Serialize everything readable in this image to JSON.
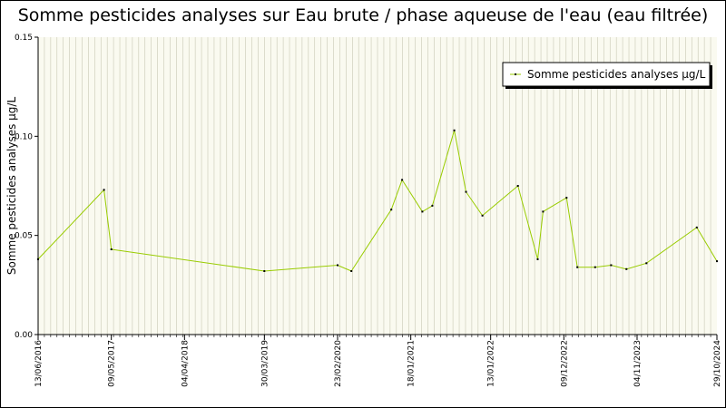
{
  "chart_data": {
    "type": "line",
    "title": "Somme pesticides analyses sur Eau brute / phase aqueuse de l'eau (eau filtrée)",
    "ylabel": "Somme pesticides analyses µg/L",
    "xlabel": "",
    "ylim": [
      0,
      0.15
    ],
    "y_ticks": [
      "0.00",
      "0.05",
      "0.10",
      "0.15"
    ],
    "x_range": [
      "2016-06-13",
      "2024-10-29"
    ],
    "x_tick_labels": [
      {
        "date": "2016-06-13",
        "label": "13/06/2016"
      },
      {
        "date": "2017-05-09",
        "label": "09/05/2017"
      },
      {
        "date": "2018-04-04",
        "label": "04/04/2018"
      },
      {
        "date": "2019-03-30",
        "label": "30/03/2019"
      },
      {
        "date": "2020-02-23",
        "label": "23/02/2020"
      },
      {
        "date": "2021-01-18",
        "label": "18/01/2021"
      },
      {
        "date": "2022-01-13",
        "label": "13/01/2022"
      },
      {
        "date": "2022-12-09",
        "label": "09/12/2022"
      },
      {
        "date": "2023-11-04",
        "label": "04/11/2023"
      },
      {
        "date": "2024-10-29",
        "label": "29/10/2024"
      }
    ],
    "grid": "vertical",
    "legend_position": "top-right",
    "series": [
      {
        "name": "Somme pesticides analyses µg/L",
        "color": "#99cc00",
        "x": [
          "2016-06-13",
          "2017-04-06",
          "2017-05-09",
          "2019-03-30",
          "2020-02-23",
          "2020-04-25",
          "2020-10-22",
          "2020-12-10",
          "2021-03-11",
          "2021-04-25",
          "2021-08-02",
          "2021-09-24",
          "2021-12-07",
          "2022-05-16",
          "2022-08-13",
          "2022-09-06",
          "2022-12-21",
          "2023-02-08",
          "2023-04-29",
          "2023-07-10",
          "2023-09-17",
          "2023-12-16",
          "2024-07-30",
          "2024-10-29"
        ],
        "values": [
          0.038,
          0.073,
          0.043,
          0.032,
          0.035,
          0.032,
          0.063,
          0.078,
          0.062,
          0.065,
          0.103,
          0.072,
          0.06,
          0.075,
          0.038,
          0.062,
          0.069,
          0.034,
          0.034,
          0.035,
          0.033,
          0.036,
          0.054,
          0.037
        ]
      }
    ]
  }
}
